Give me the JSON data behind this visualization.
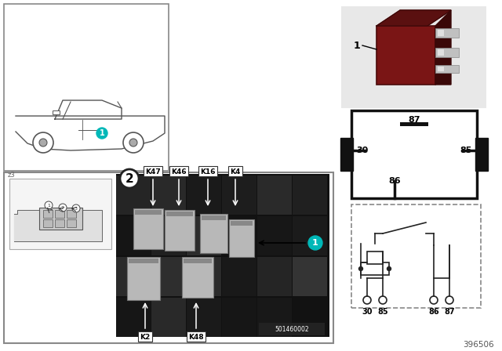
{
  "page_bg": "#ffffff",
  "part_number": "396506",
  "photo_label": "501460002",
  "callout_teal": "#00b8b8",
  "relay_labels_top": [
    [
      "K47",
      195
    ],
    [
      "K46",
      228
    ],
    [
      "K16",
      265
    ],
    [
      "K4",
      300
    ]
  ],
  "relay_labels_bot": [
    [
      "K2",
      185
    ],
    [
      "K48",
      250
    ]
  ],
  "pin_labels_top": [
    "87",
    "30",
    "85",
    "86"
  ],
  "pin_labels_bot": [
    "30",
    "85",
    "86",
    "87"
  ],
  "sketch_circles": [
    [
      62,
      186
    ],
    [
      80,
      183
    ],
    [
      97,
      182
    ]
  ],
  "z3_label": "z3"
}
